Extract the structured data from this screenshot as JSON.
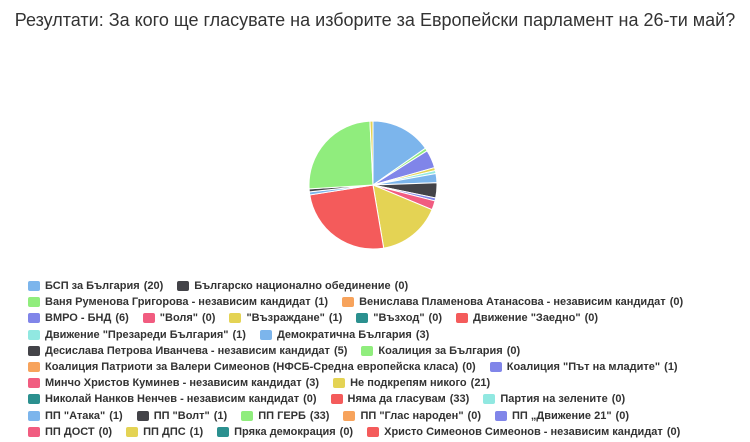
{
  "chart_data": {
    "type": "pie",
    "title": "Резултати: За кого ще гласувате на изборите за Европейски парламент на 26-ти май?",
    "categories": [
      "БСП за България",
      "Българско национално обединение",
      "Ваня Руменова Григорова - независим кандидат",
      "Венислава Пламенова Атанасова - независим кандидат",
      "ВМРО - БНД",
      "\"Воля\"",
      "\"Възраждане\"",
      "\"Възход\"",
      "Движение \"Заедно\"",
      "Движение \"Презареди България\"",
      "Демократична България",
      "Десислава Петрова Иванчева - независим кандидат",
      "Коалиция за България",
      "Коалиция Патриоти за Валери Симеонов (НФСБ-Средна европейска класа)",
      "Коалиция \"Път на младите\"",
      "Минчо Христов Куминев - независим кандидат",
      "Не подкрепям никого",
      "Николай Нанков Ненчев - независим кандидат",
      "Няма да гласувам",
      "Партия на зелените",
      "ПП \"Атака\"",
      "ПП \"Волт\"",
      "ПП ГЕРБ",
      "ПП \"Глас народен\"",
      "ПП „Движение 21\"",
      "ПП ДОСТ",
      "ПП ДПС",
      "Пряка демокрация",
      "Христо Симеонов Симеонов - независим кандидат"
    ],
    "values": [
      20,
      0,
      1,
      0,
      6,
      0,
      1,
      0,
      0,
      1,
      3,
      5,
      0,
      0,
      1,
      3,
      21,
      0,
      33,
      0,
      1,
      1,
      33,
      0,
      0,
      0,
      1,
      0,
      0
    ],
    "value_labels": [
      "(20)",
      "(0)",
      "(1)",
      "(0)",
      "(6)",
      "(0)",
      "(1)",
      "(0)",
      "(0)",
      "(1)",
      "(3)",
      "(5)",
      "(0)",
      "(0)",
      "(1)",
      "(3)",
      "(21)",
      "(0)",
      "(33)",
      "(0)",
      "(1)",
      "(1)",
      "(33)",
      "(0)",
      "(0)",
      "(0)",
      "(1)",
      "(0)",
      "(0)"
    ],
    "colors": [
      "#7cb5ec",
      "#434348",
      "#90ed7d",
      "#f7a35c",
      "#8085e9",
      "#f15c80",
      "#e4d354",
      "#2b908f",
      "#f45b5b",
      "#91e8e1",
      "#7cb5ec",
      "#434348",
      "#90ed7d",
      "#f7a35c",
      "#8085e9",
      "#f15c80",
      "#e4d354",
      "#2b908f",
      "#f45b5b",
      "#91e8e1",
      "#7cb5ec",
      "#434348",
      "#90ed7d",
      "#f7a35c",
      "#8085e9",
      "#f15c80",
      "#e4d354",
      "#2b908f",
      "#f45b5b"
    ]
  }
}
